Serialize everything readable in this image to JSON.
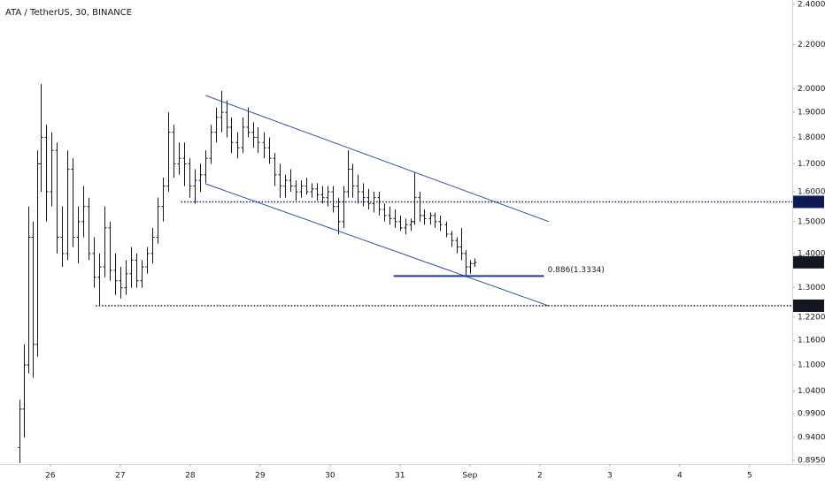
{
  "chart_data": {
    "type": "ohlc",
    "title": "ATA / TetherUS, 30, BINANCE",
    "log_scale": true,
    "color": "#131722",
    "xlim": [
      -0.72,
      10.61
    ],
    "ylim": [
      0.888,
      2.423
    ],
    "xticks": [
      {
        "value": 0,
        "label": "26"
      },
      {
        "value": 1,
        "label": "27"
      },
      {
        "value": 2,
        "label": "28"
      },
      {
        "value": 3,
        "label": "29"
      },
      {
        "value": 4,
        "label": "30"
      },
      {
        "value": 5,
        "label": "31"
      },
      {
        "value": 6,
        "label": "Sep"
      },
      {
        "value": 7,
        "label": "2"
      },
      {
        "value": 8,
        "label": "3"
      },
      {
        "value": 9,
        "label": "4"
      },
      {
        "value": 10,
        "label": "5"
      }
    ],
    "yticks": [
      {
        "value": 2.4,
        "label": "2.4000"
      },
      {
        "value": 2.2,
        "label": "2.2000"
      },
      {
        "value": 2.0,
        "label": "2.0000"
      },
      {
        "value": 1.9,
        "label": "1.9000"
      },
      {
        "value": 1.8,
        "label": "1.8000"
      },
      {
        "value": 1.7,
        "label": "1.7000"
      },
      {
        "value": 1.6,
        "label": "1.6000"
      },
      {
        "value": 1.5,
        "label": "1.5000"
      },
      {
        "value": 1.4,
        "label": "1.4000"
      },
      {
        "value": 1.3,
        "label": "1.3000"
      },
      {
        "value": 1.22,
        "label": "1.2200"
      },
      {
        "value": 1.16,
        "label": "1.1600"
      },
      {
        "value": 1.1,
        "label": "1.1000"
      },
      {
        "value": 1.04,
        "label": "1.0400"
      },
      {
        "value": 0.99,
        "label": "0.9900"
      },
      {
        "value": 0.94,
        "label": "0.9400"
      },
      {
        "value": 0.895,
        "label": "0.8950"
      }
    ],
    "x": [
      -0.44,
      -0.38,
      -0.32,
      -0.25,
      -0.19,
      -0.14,
      -0.06,
      0.01,
      0.09,
      0.16,
      0.24,
      0.32,
      0.39,
      0.47,
      0.54,
      0.62,
      0.7,
      0.77,
      0.85,
      0.92,
      1.0,
      1.08,
      1.15,
      1.23,
      1.3,
      1.38,
      1.46,
      1.53,
      1.61,
      1.68,
      1.76,
      1.84,
      1.91,
      1.99,
      2.06,
      2.14,
      2.22,
      2.29,
      2.37,
      2.44,
      2.52,
      2.59,
      2.67,
      2.75,
      2.82,
      2.9,
      2.97,
      3.05,
      3.13,
      3.2,
      3.28,
      3.35,
      3.43,
      3.51,
      3.58,
      3.66,
      3.73,
      3.81,
      3.89,
      3.96,
      4.04,
      4.11,
      4.19,
      4.25,
      4.32,
      4.39,
      4.47,
      4.54,
      4.62,
      4.7,
      4.77,
      4.85,
      4.92,
      5.0,
      5.08,
      5.15,
      5.2,
      5.28,
      5.35,
      5.43,
      5.49,
      5.57,
      5.66,
      5.73,
      5.81,
      5.87,
      5.94,
      6.0,
      6.06
    ],
    "open": [
      0.92,
      1.0,
      1.1,
      1.45,
      1.15,
      1.7,
      1.8,
      1.6,
      1.75,
      1.45,
      1.4,
      1.68,
      1.45,
      1.5,
      1.55,
      1.4,
      1.33,
      1.36,
      1.48,
      1.35,
      1.32,
      1.3,
      1.34,
      1.38,
      1.32,
      1.36,
      1.4,
      1.45,
      1.55,
      1.62,
      1.82,
      1.7,
      1.72,
      1.7,
      1.62,
      1.64,
      1.66,
      1.72,
      1.82,
      1.88,
      1.9,
      1.84,
      1.78,
      1.76,
      1.84,
      1.82,
      1.8,
      1.78,
      1.76,
      1.72,
      1.66,
      1.62,
      1.64,
      1.62,
      1.6,
      1.62,
      1.6,
      1.61,
      1.59,
      1.58,
      1.6,
      1.55,
      1.5,
      1.6,
      1.68,
      1.62,
      1.6,
      1.58,
      1.56,
      1.58,
      1.54,
      1.52,
      1.51,
      1.5,
      1.48,
      1.49,
      1.5,
      1.58,
      1.52,
      1.51,
      1.52,
      1.5,
      1.49,
      1.46,
      1.44,
      1.42,
      1.4,
      1.36,
      1.37
    ],
    "high": [
      1.02,
      1.15,
      1.55,
      1.5,
      1.75,
      2.02,
      1.85,
      1.82,
      1.78,
      1.55,
      1.75,
      1.72,
      1.55,
      1.62,
      1.58,
      1.45,
      1.4,
      1.55,
      1.5,
      1.4,
      1.36,
      1.38,
      1.42,
      1.4,
      1.38,
      1.42,
      1.48,
      1.58,
      1.65,
      1.9,
      1.85,
      1.78,
      1.78,
      1.72,
      1.68,
      1.7,
      1.75,
      1.85,
      1.92,
      1.99,
      1.95,
      1.88,
      1.82,
      1.88,
      1.92,
      1.86,
      1.84,
      1.82,
      1.8,
      1.74,
      1.7,
      1.66,
      1.68,
      1.64,
      1.64,
      1.65,
      1.63,
      1.63,
      1.62,
      1.62,
      1.62,
      1.58,
      1.62,
      1.75,
      1.7,
      1.66,
      1.63,
      1.61,
      1.6,
      1.6,
      1.56,
      1.55,
      1.54,
      1.52,
      1.51,
      1.51,
      1.67,
      1.6,
      1.54,
      1.53,
      1.53,
      1.52,
      1.5,
      1.47,
      1.45,
      1.48,
      1.41,
      1.38,
      1.385
    ],
    "low": [
      0.89,
      0.94,
      1.08,
      1.07,
      1.12,
      1.6,
      1.5,
      1.55,
      1.4,
      1.36,
      1.38,
      1.42,
      1.37,
      1.45,
      1.38,
      1.3,
      1.25,
      1.33,
      1.32,
      1.28,
      1.27,
      1.28,
      1.3,
      1.3,
      1.3,
      1.34,
      1.37,
      1.43,
      1.5,
      1.6,
      1.65,
      1.66,
      1.62,
      1.58,
      1.56,
      1.6,
      1.63,
      1.7,
      1.78,
      1.82,
      1.8,
      1.74,
      1.72,
      1.74,
      1.8,
      1.76,
      1.74,
      1.72,
      1.7,
      1.62,
      1.58,
      1.58,
      1.6,
      1.57,
      1.58,
      1.59,
      1.58,
      1.57,
      1.56,
      1.55,
      1.53,
      1.46,
      1.48,
      1.58,
      1.58,
      1.56,
      1.55,
      1.54,
      1.53,
      1.52,
      1.5,
      1.49,
      1.48,
      1.47,
      1.46,
      1.47,
      1.49,
      1.5,
      1.49,
      1.49,
      1.48,
      1.47,
      1.45,
      1.42,
      1.4,
      1.38,
      1.33,
      1.34,
      1.36
    ],
    "close": [
      1.0,
      1.1,
      1.45,
      1.15,
      1.7,
      1.8,
      1.6,
      1.75,
      1.45,
      1.4,
      1.68,
      1.45,
      1.5,
      1.55,
      1.4,
      1.33,
      1.36,
      1.48,
      1.35,
      1.32,
      1.3,
      1.34,
      1.38,
      1.32,
      1.36,
      1.4,
      1.45,
      1.55,
      1.62,
      1.82,
      1.7,
      1.72,
      1.7,
      1.62,
      1.64,
      1.66,
      1.72,
      1.82,
      1.88,
      1.9,
      1.84,
      1.78,
      1.76,
      1.84,
      1.82,
      1.8,
      1.78,
      1.76,
      1.72,
      1.66,
      1.62,
      1.64,
      1.62,
      1.6,
      1.62,
      1.6,
      1.61,
      1.59,
      1.58,
      1.6,
      1.55,
      1.5,
      1.6,
      1.68,
      1.62,
      1.6,
      1.58,
      1.56,
      1.58,
      1.54,
      1.52,
      1.51,
      1.5,
      1.48,
      1.49,
      1.5,
      1.58,
      1.52,
      1.51,
      1.52,
      1.5,
      1.49,
      1.46,
      1.44,
      1.42,
      1.4,
      1.36,
      1.37,
      1.3737
    ],
    "trendlines": [
      {
        "color": "#2a4fa8",
        "x": [
          2.22,
          7.13
        ],
        "y": [
          1.971,
          1.5
        ]
      },
      {
        "color": "#2a4fa8",
        "x": [
          2.22,
          7.13
        ],
        "y": [
          1.628,
          1.25
        ]
      }
    ],
    "hlines": [
      {
        "value": 1.5655,
        "xstart": 1.87,
        "color": "#0d1a5c"
      },
      {
        "value": 1.2504,
        "xstart": 0.65,
        "color": "#131722"
      }
    ],
    "last_price": 1.3737,
    "fib": {
      "value": 1.3334,
      "label": "0.886(1.3334)",
      "x": [
        4.91,
        7.06
      ],
      "color": "#1e3a9e"
    }
  }
}
